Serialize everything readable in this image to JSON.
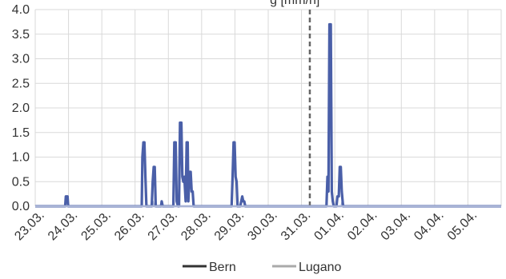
{
  "chart_data": {
    "type": "line",
    "title": "g [mm/h]",
    "ylim": [
      0,
      4.0
    ],
    "y_ticks": [
      "0.0",
      "0.5",
      "1.0",
      "1.5",
      "2.0",
      "2.5",
      "3.0",
      "3.5",
      "4.0"
    ],
    "x_tick_labels": [
      "23.03.",
      "24.03.",
      "25.03.",
      "26.03.",
      "27.03.",
      "28.03.",
      "29.03.",
      "30.03.",
      "31.03.",
      "01.04.",
      "02.04.",
      "03.04.",
      "04.04.",
      "05.04."
    ],
    "x_range_days": [
      0,
      14
    ],
    "marker_day": 8.25,
    "grid": true,
    "legend_position": "bottom",
    "colors": {
      "bern": "#4a5fa8",
      "lugano": "#a9b4d6",
      "marker": "#666666",
      "grid": "#d9d9d9",
      "legend_bern": "#333333",
      "legend_lugano": "#aaaaaa"
    },
    "series": [
      {
        "name": "Bern",
        "points": [
          [
            0,
            0
          ],
          [
            0.9,
            0
          ],
          [
            0.92,
            0.2
          ],
          [
            0.97,
            0.2
          ],
          [
            0.99,
            0
          ],
          [
            3.2,
            0
          ],
          [
            3.22,
            1.0
          ],
          [
            3.25,
            1.3
          ],
          [
            3.28,
            1.3
          ],
          [
            3.31,
            0.6
          ],
          [
            3.34,
            0
          ],
          [
            3.5,
            0
          ],
          [
            3.53,
            0.5
          ],
          [
            3.56,
            0.8
          ],
          [
            3.59,
            0.8
          ],
          [
            3.62,
            0
          ],
          [
            3.78,
            0
          ],
          [
            3.8,
            0.1
          ],
          [
            3.83,
            0
          ],
          [
            4.15,
            0
          ],
          [
            4.18,
            1.3
          ],
          [
            4.22,
            1.3
          ],
          [
            4.25,
            0.1
          ],
          [
            4.29,
            0
          ],
          [
            4.32,
            0
          ],
          [
            4.35,
            1.7
          ],
          [
            4.39,
            1.7
          ],
          [
            4.42,
            0.6
          ],
          [
            4.45,
            0.5
          ],
          [
            4.48,
            0.6
          ],
          [
            4.52,
            0.1
          ],
          [
            4.55,
            1.3
          ],
          [
            4.58,
            1.3
          ],
          [
            4.6,
            0.1
          ],
          [
            4.64,
            0.7
          ],
          [
            4.67,
            0.7
          ],
          [
            4.7,
            0.3
          ],
          [
            4.73,
            0.3
          ],
          [
            4.76,
            0
          ],
          [
            5.9,
            0
          ],
          [
            5.93,
            0.6
          ],
          [
            5.96,
            1.3
          ],
          [
            5.99,
            1.3
          ],
          [
            6.02,
            0.6
          ],
          [
            6.05,
            0.5
          ],
          [
            6.08,
            0
          ],
          [
            6.16,
            0
          ],
          [
            6.19,
            0.1
          ],
          [
            6.22,
            0.2
          ],
          [
            6.25,
            0.1
          ],
          [
            6.28,
            0.1
          ],
          [
            6.31,
            0
          ],
          [
            8.75,
            0
          ],
          [
            8.78,
            0.6
          ],
          [
            8.81,
            0.3
          ],
          [
            8.84,
            3.7
          ],
          [
            8.88,
            3.7
          ],
          [
            8.91,
            0.3
          ],
          [
            8.94,
            0.1
          ],
          [
            8.97,
            0
          ],
          [
            9.05,
            0
          ],
          [
            9.08,
            0.2
          ],
          [
            9.12,
            0.2
          ],
          [
            9.15,
            0.8
          ],
          [
            9.18,
            0.8
          ],
          [
            9.21,
            0.3
          ],
          [
            9.25,
            0
          ],
          [
            14,
            0
          ]
        ]
      },
      {
        "name": "Lugano",
        "points": [
          [
            0,
            0
          ],
          [
            3.5,
            0
          ],
          [
            3.53,
            0.1
          ],
          [
            3.56,
            0
          ],
          [
            9.2,
            0
          ],
          [
            9.23,
            0.1
          ],
          [
            9.27,
            0
          ],
          [
            14,
            0
          ]
        ]
      }
    ],
    "legend": [
      {
        "key": "bern",
        "label": "Bern"
      },
      {
        "key": "lugano",
        "label": "Lugano"
      }
    ]
  }
}
